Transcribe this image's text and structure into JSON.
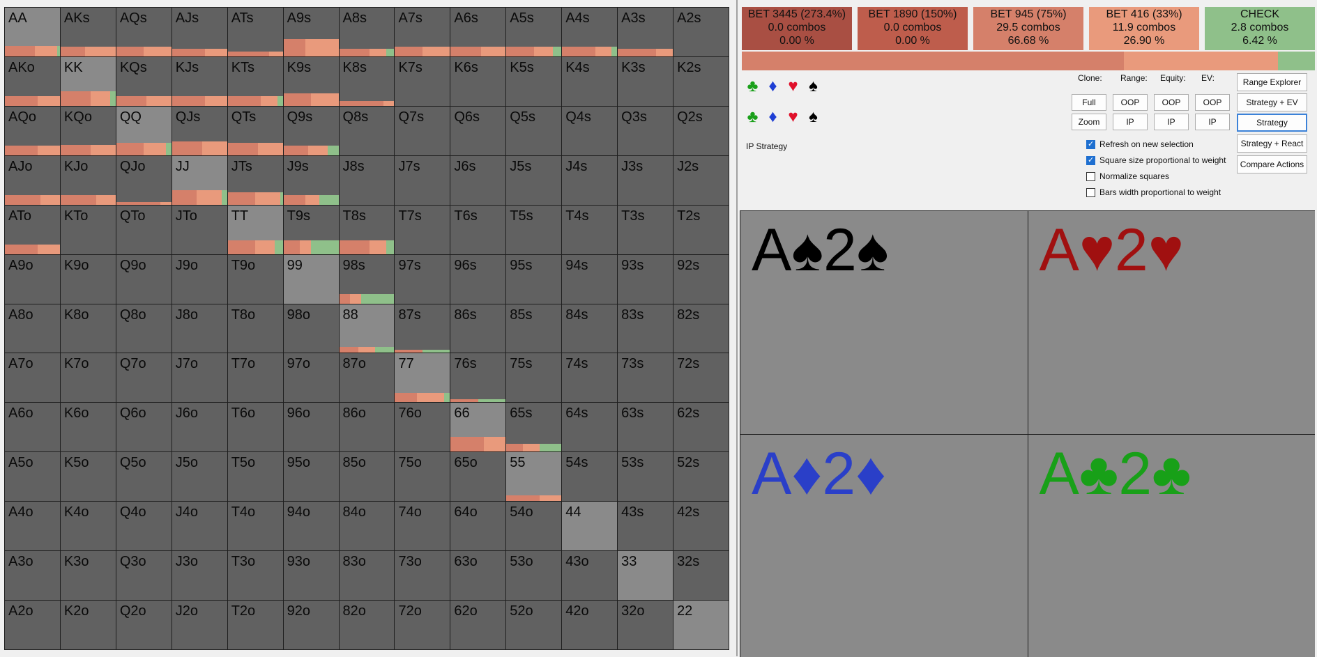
{
  "grid": {
    "rows": [
      [
        "AA",
        "AKs",
        "AQs",
        "AJs",
        "ATs",
        "A9s",
        "A8s",
        "A7s",
        "A6s",
        "A5s",
        "A4s",
        "A3s",
        "A2s"
      ],
      [
        "AKo",
        "KK",
        "KQs",
        "KJs",
        "KTs",
        "K9s",
        "K8s",
        "K7s",
        "K6s",
        "K5s",
        "K4s",
        "K3s",
        "K2s"
      ],
      [
        "AQo",
        "KQo",
        "QQ",
        "QJs",
        "QTs",
        "Q9s",
        "Q8s",
        "Q7s",
        "Q6s",
        "Q5s",
        "Q4s",
        "Q3s",
        "Q2s"
      ],
      [
        "AJo",
        "KJo",
        "QJo",
        "JJ",
        "JTs",
        "J9s",
        "J8s",
        "J7s",
        "J6s",
        "J5s",
        "J4s",
        "J3s",
        "J2s"
      ],
      [
        "ATo",
        "KTo",
        "QTo",
        "JTo",
        "TT",
        "T9s",
        "T8s",
        "T7s",
        "T6s",
        "T5s",
        "T4s",
        "T3s",
        "T2s"
      ],
      [
        "A9o",
        "K9o",
        "Q9o",
        "J9o",
        "T9o",
        "99",
        "98s",
        "97s",
        "96s",
        "95s",
        "94s",
        "93s",
        "92s"
      ],
      [
        "A8o",
        "K8o",
        "Q8o",
        "J8o",
        "T8o",
        "98o",
        "88",
        "87s",
        "86s",
        "85s",
        "84s",
        "83s",
        "82s"
      ],
      [
        "A7o",
        "K7o",
        "Q7o",
        "J7o",
        "T7o",
        "97o",
        "87o",
        "77",
        "76s",
        "75s",
        "74s",
        "73s",
        "72s"
      ],
      [
        "A6o",
        "K6o",
        "Q6o",
        "J6o",
        "T6o",
        "96o",
        "86o",
        "76o",
        "66",
        "65s",
        "64s",
        "63s",
        "62s"
      ],
      [
        "A5o",
        "K5o",
        "Q5o",
        "J5o",
        "T5o",
        "95o",
        "85o",
        "75o",
        "65o",
        "55",
        "54s",
        "53s",
        "52s"
      ],
      [
        "A4o",
        "K4o",
        "Q4o",
        "J4o",
        "T4o",
        "94o",
        "84o",
        "74o",
        "64o",
        "54o",
        "44",
        "43s",
        "42s"
      ],
      [
        "A3o",
        "K3o",
        "Q3o",
        "J3o",
        "T3o",
        "93o",
        "83o",
        "73o",
        "63o",
        "53o",
        "43o",
        "33",
        "32s"
      ],
      [
        "A2o",
        "K2o",
        "Q2o",
        "J2o",
        "T2o",
        "92o",
        "82o",
        "72o",
        "62o",
        "52o",
        "42o",
        "32o",
        "22"
      ]
    ],
    "bars": {
      "AA": [
        [
          0,
          0,
          0.55,
          0.4,
          0.05
        ],
        0.22
      ],
      "AKs": [
        [
          0,
          0,
          0.45,
          0.55,
          0
        ],
        0.2
      ],
      "AQs": [
        [
          0,
          0,
          0.5,
          0.5,
          0
        ],
        0.2
      ],
      "AJs": [
        [
          0,
          0,
          0.6,
          0.4,
          0
        ],
        0.15
      ],
      "ATs": [
        [
          0,
          0,
          0.75,
          0.25,
          0
        ],
        0.1
      ],
      "A9s": [
        [
          0,
          0,
          0.4,
          0.6,
          0
        ],
        0.35
      ],
      "A8s": [
        [
          0,
          0,
          0.55,
          0.3,
          0.15
        ],
        0.15
      ],
      "A7s": [
        [
          0,
          0,
          0.5,
          0.5,
          0
        ],
        0.2
      ],
      "A6s": [
        [
          0,
          0,
          0.55,
          0.45,
          0
        ],
        0.2
      ],
      "A5s": [
        [
          0,
          0,
          0.5,
          0.35,
          0.15
        ],
        0.2
      ],
      "A4s": [
        [
          0,
          0,
          0.6,
          0.3,
          0.1
        ],
        0.2
      ],
      "A3s": [
        [
          0,
          0,
          0.7,
          0.3,
          0
        ],
        0.15
      ],
      "AKo": [
        [
          0,
          0,
          0.6,
          0.4,
          0
        ],
        0.2
      ],
      "KK": [
        [
          0,
          0,
          0.55,
          0.35,
          0.1
        ],
        0.3
      ],
      "KQs": [
        [
          0,
          0,
          0.55,
          0.45,
          0
        ],
        0.2
      ],
      "KJs": [
        [
          0,
          0,
          0.6,
          0.4,
          0
        ],
        0.2
      ],
      "KTs": [
        [
          0,
          0,
          0.6,
          0.3,
          0.1
        ],
        0.2
      ],
      "K9s": [
        [
          0,
          0,
          0.5,
          0.5,
          0
        ],
        0.25
      ],
      "K8s": [
        [
          0,
          0,
          0.8,
          0.2,
          0
        ],
        0.1
      ],
      "AQo": [
        [
          0,
          0,
          0.6,
          0.4,
          0
        ],
        0.2
      ],
      "KQo": [
        [
          0,
          0,
          0.55,
          0.45,
          0
        ],
        0.22
      ],
      "QQ": [
        [
          0,
          0,
          0.5,
          0.4,
          0.1
        ],
        0.25
      ],
      "QJs": [
        [
          0,
          0,
          0.55,
          0.45,
          0
        ],
        0.28
      ],
      "QTs": [
        [
          0,
          0,
          0.55,
          0.45,
          0
        ],
        0.25
      ],
      "Q9s": [
        [
          0,
          0,
          0.45,
          0.35,
          0.2
        ],
        0.2
      ],
      "AJo": [
        [
          0,
          0,
          0.65,
          0.35,
          0
        ],
        0.2
      ],
      "KJo": [
        [
          0,
          0,
          0.65,
          0.35,
          0
        ],
        0.2
      ],
      "QJo": [
        [
          0,
          0,
          0.8,
          0.2,
          0
        ],
        0.05
      ],
      "JJ": [
        [
          0,
          0,
          0.45,
          0.45,
          0.1
        ],
        0.3
      ],
      "JTs": [
        [
          0,
          0,
          0.5,
          0.45,
          0.05
        ],
        0.25
      ],
      "J9s": [
        [
          0,
          0,
          0.4,
          0.25,
          0.35
        ],
        0.2
      ],
      "ATo": [
        [
          0,
          0,
          0.6,
          0.4,
          0
        ],
        0.2
      ],
      "TT": [
        [
          0,
          0,
          0.5,
          0.35,
          0.15
        ],
        0.28
      ],
      "T9s": [
        [
          0,
          0,
          0.3,
          0.2,
          0.5
        ],
        0.28
      ],
      "T8s": [
        [
          0,
          0,
          0.55,
          0.3,
          0.15
        ],
        0.28
      ],
      "99": [
        [
          0,
          0,
          0,
          0,
          0
        ],
        0
      ],
      "98s": [
        [
          0,
          0,
          0.2,
          0.2,
          0.6
        ],
        0.2
      ],
      "88": [
        [
          0,
          0,
          0.35,
          0.3,
          0.35
        ],
        0.12
      ],
      "87s": [
        [
          0,
          0,
          0.5,
          0,
          0.5
        ],
        0.05
      ],
      "77": [
        [
          0,
          0,
          0.4,
          0.5,
          0.1
        ],
        0.18
      ],
      "76s": [
        [
          0,
          0,
          0.5,
          0,
          0.5
        ],
        0.05
      ],
      "66": [
        [
          0,
          0,
          0.6,
          0.4,
          0
        ],
        0.3
      ],
      "65s": [
        [
          0,
          0,
          0.3,
          0.3,
          0.4
        ],
        0.15
      ],
      "55": [
        [
          0,
          0,
          0.6,
          0.4,
          0
        ],
        0.12
      ]
    }
  },
  "actions": [
    {
      "line1": "BET 3445 (273.4%)",
      "line2": "0.0 combos",
      "line3": "0.00 %",
      "color": "#a94f43"
    },
    {
      "line1": "BET 1890 (150%)",
      "line2": "0.0 combos",
      "line3": "0.00 %",
      "color": "#be5d4c"
    },
    {
      "line1": "BET 945 (75%)",
      "line2": "29.5 combos",
      "line3": "66.68 %",
      "color": "#d5806a"
    },
    {
      "line1": "BET 416 (33%)",
      "line2": "11.9 combos",
      "line3": "26.90 %",
      "color": "#e99a7c"
    },
    {
      "line1": "CHECK",
      "line2": "2.8 combos",
      "line3": "6.42 %",
      "color": "#8fc08a"
    }
  ],
  "strategy_bar": [
    {
      "fraction": 0.6668,
      "color": "#d5806a"
    },
    {
      "fraction": 0.269,
      "color": "#e99a7c"
    },
    {
      "fraction": 0.0642,
      "color": "#8fc08a"
    }
  ],
  "suits_row1": [
    {
      "glyph": "♣",
      "color": "#1aa01a",
      "name": "club-icon"
    },
    {
      "glyph": "♦",
      "color": "#1f3fd4",
      "name": "diamond-icon"
    },
    {
      "glyph": "♥",
      "color": "#e0102a",
      "name": "heart-icon"
    },
    {
      "glyph": "♠",
      "color": "#000000",
      "name": "spade-icon"
    }
  ],
  "suits_row2": [
    {
      "glyph": "♣",
      "color": "#1aa01a",
      "name": "club-icon"
    },
    {
      "glyph": "♦",
      "color": "#1f3fd4",
      "name": "diamond-icon"
    },
    {
      "glyph": "♥",
      "color": "#e0102a",
      "name": "heart-icon"
    },
    {
      "glyph": "♠",
      "color": "#000000",
      "name": "spade-icon"
    }
  ],
  "ip_strategy_label": "IP Strategy",
  "headers": {
    "clone": "Clone:",
    "range": "Range:",
    "equity": "Equity:",
    "ev": "EV:"
  },
  "buttons": {
    "full": "Full",
    "zoom": "Zoom",
    "range_oop": "OOP",
    "range_ip": "IP",
    "equity_oop": "OOP",
    "equity_ip": "IP",
    "ev_oop": "OOP",
    "ev_ip": "IP",
    "range_explorer": "Range Explorer",
    "strategy_ev": "Strategy + EV",
    "strategy": "Strategy",
    "strategy_react": "Strategy + React",
    "compare_actions": "Compare Actions"
  },
  "checkboxes": [
    {
      "label": "Refresh on new selection",
      "checked": true
    },
    {
      "label": "Square size proportional to weight",
      "checked": true
    },
    {
      "label": "Normalize squares",
      "checked": false
    },
    {
      "label": "Bars width proportional to weight",
      "checked": false
    }
  ],
  "combos": [
    {
      "text": "A♠2♠",
      "color": "#000000"
    },
    {
      "text": "A♥2♥",
      "color": "#a01010"
    },
    {
      "text": "A♦2♦",
      "color": "#2a3fc8"
    },
    {
      "text": "A♣2♣",
      "color": "#18a018"
    }
  ]
}
